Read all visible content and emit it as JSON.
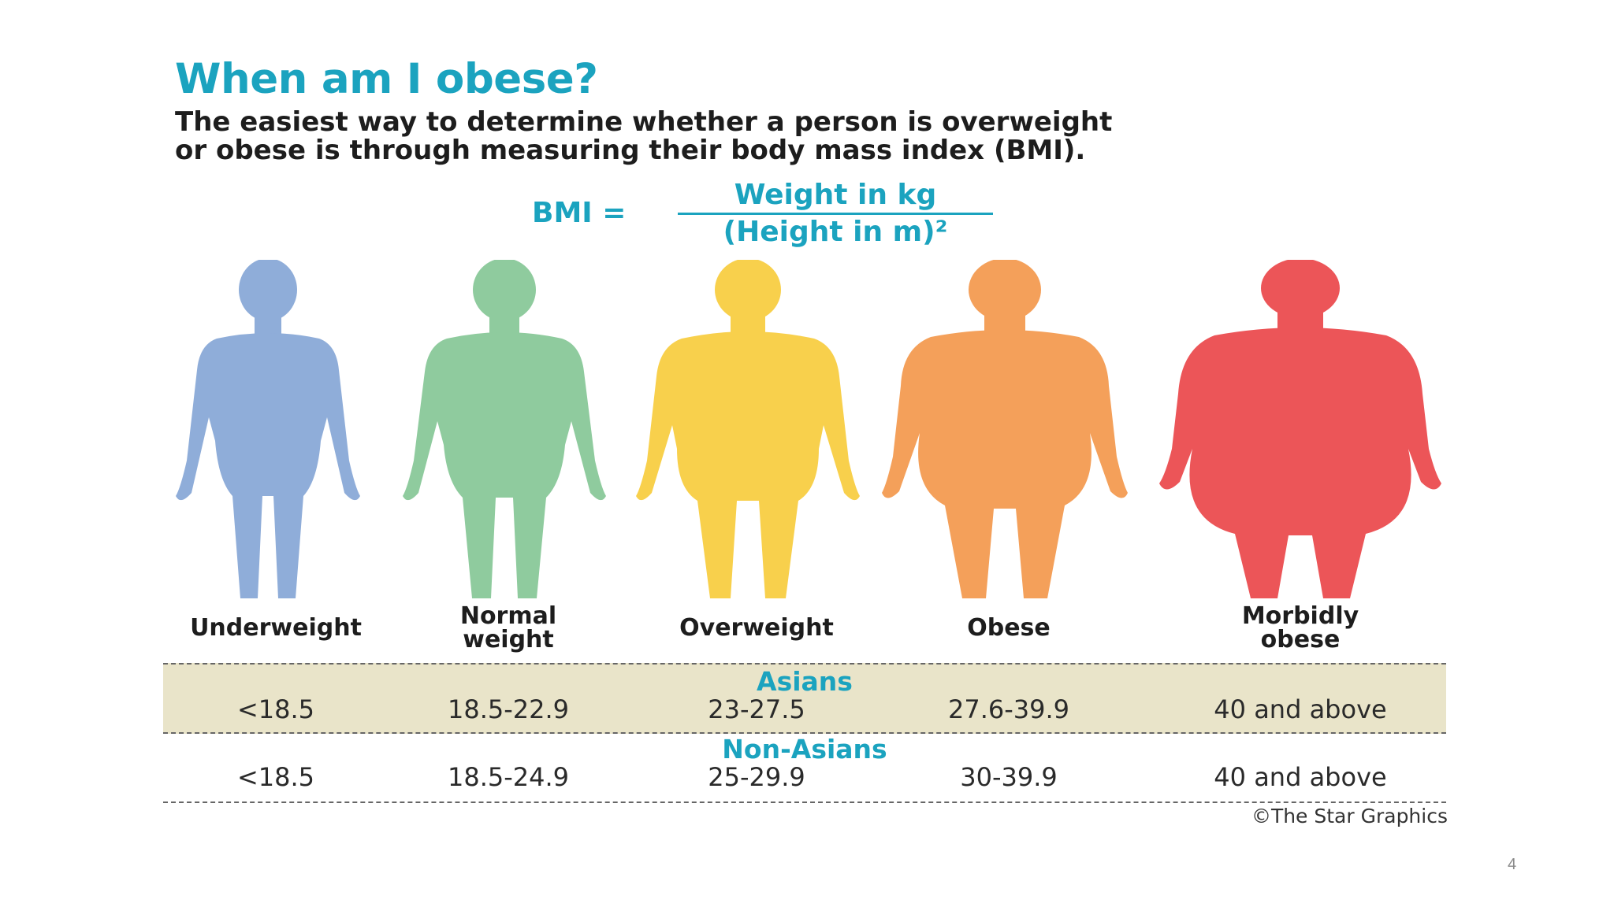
{
  "title": "When am I obese?",
  "subtitle": {
    "line1": "The easiest way to determine whether a person is overweight",
    "line2": "or obese is through measuring their body mass index (BMI)."
  },
  "formula": {
    "lhs": "BMI =",
    "numerator": "Weight in kg",
    "denominator": "(Height in m)²"
  },
  "categories": [
    {
      "label": "Underweight",
      "color": "#8fadd9",
      "icon": "underweight-body-icon"
    },
    {
      "label": "Normal weight",
      "color": "#8fcb9e",
      "icon": "normal-weight-body-icon"
    },
    {
      "label": "Overweight",
      "color": "#f8d04c",
      "icon": "overweight-body-icon"
    },
    {
      "label": "Obese",
      "color": "#f4a05a",
      "icon": "obese-body-icon"
    },
    {
      "label": "Morbidly obese",
      "color": "#ec5558",
      "icon": "morbidly-obese-body-icon"
    }
  ],
  "category_labels": {
    "underweight": "Underweight",
    "normal_line1": "Normal",
    "normal_line2": "weight",
    "overweight": "Overweight",
    "obese": "Obese",
    "morbid_line1": "Morbidly",
    "morbid_line2": "obese"
  },
  "asians": {
    "title": "Asians",
    "values": [
      "<18.5",
      "18.5-22.9",
      "23-27.5",
      "27.6-39.9",
      "40 and above"
    ]
  },
  "non_asians": {
    "title": "Non-Asians",
    "values": [
      "<18.5",
      "18.5-24.9",
      "25-29.9",
      "30-39.9",
      "40 and above"
    ]
  },
  "credit": "©The Star Graphics",
  "page_number": "4",
  "colors": {
    "accent": "#1ba3bf",
    "band": "#e9e4c9"
  }
}
